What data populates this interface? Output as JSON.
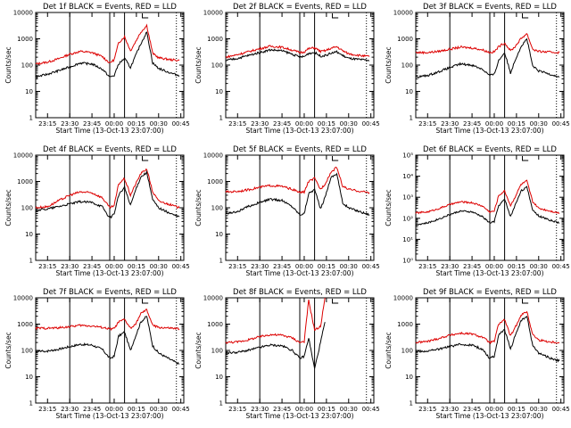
{
  "chart_data": [
    {
      "type": "line",
      "title": "Det 1f BLACK = Events, RED = LLD",
      "xlabel": "Start Time (13-Oct-13 23:07:00)",
      "ylabel": "Counts/sec",
      "yscale": "log",
      "ylim": [
        1,
        10000
      ],
      "ytick_labels": [
        "1",
        "10",
        "100",
        "1000",
        "10000"
      ],
      "xtick_labels": [
        "23:15",
        "23:30",
        "23:45",
        "00:00",
        "00:15",
        "00:30",
        "00:45"
      ],
      "x": [
        "23:07",
        "23:15",
        "23:22",
        "23:30",
        "23:37",
        "23:45",
        "23:52",
        "23:57",
        "00:00",
        "00:03",
        "00:07",
        "00:11",
        "00:14",
        "00:18",
        "00:22",
        "00:26",
        "00:30",
        "00:38",
        "00:44"
      ],
      "series": [
        {
          "name": "Events",
          "color": "#000000",
          "values": [
            35,
            45,
            60,
            85,
            120,
            110,
            70,
            35,
            40,
            110,
            180,
            80,
            200,
            650,
            1800,
            120,
            75,
            50,
            40
          ]
        },
        {
          "name": "LLD",
          "color": "#dd0000",
          "values": [
            110,
            130,
            170,
            260,
            330,
            300,
            210,
            120,
            160,
            700,
            1200,
            350,
            700,
            1800,
            3200,
            280,
            190,
            160,
            150
          ]
        }
      ],
      "vlines_solid": [
        "23:30",
        "23:57",
        "00:07"
      ],
      "vlines_dotted": [
        "23:07",
        "00:42"
      ]
    },
    {
      "type": "line",
      "title": "Det 2f BLACK = Events, RED = LLD",
      "xlabel": "Start Time (13-Oct-13 23:07:00)",
      "ylabel": "Counts/sec",
      "yscale": "log",
      "ylim": [
        1,
        10000
      ],
      "ytick_labels": [
        "1",
        "10",
        "100",
        "1000",
        "10000"
      ],
      "xtick_labels": [
        "23:15",
        "23:30",
        "23:45",
        "00:00",
        "00:15",
        "00:30",
        "00:45"
      ],
      "x": [
        "23:07",
        "23:15",
        "23:22",
        "23:30",
        "23:37",
        "23:45",
        "23:52",
        "23:57",
        "00:00",
        "00:03",
        "00:07",
        "00:11",
        "00:14",
        "00:18",
        "00:22",
        "00:26",
        "00:30",
        "00:38",
        "00:44"
      ],
      "series": [
        {
          "name": "Events",
          "color": "#000000",
          "values": [
            150,
            180,
            230,
            300,
            380,
            350,
            260,
            200,
            210,
            280,
            300,
            220,
            230,
            280,
            320,
            230,
            180,
            160,
            150
          ]
        },
        {
          "name": "LLD",
          "color": "#dd0000",
          "values": [
            200,
            250,
            320,
            420,
            520,
            480,
            370,
            300,
            320,
            420,
            460,
            330,
            350,
            430,
            500,
            350,
            270,
            230,
            210
          ]
        }
      ],
      "vlines_solid": [
        "23:30",
        "23:57",
        "00:07"
      ],
      "vlines_dotted": [
        "23:07",
        "00:42"
      ]
    },
    {
      "type": "line",
      "title": "Det 3f BLACK = Events, RED = LLD",
      "xlabel": "Start Time (13-Oct-13 23:07:00)",
      "ylabel": "Counts/sec",
      "yscale": "log",
      "ylim": [
        1,
        10000
      ],
      "ytick_labels": [
        "1",
        "10",
        "100",
        "1000",
        "10000"
      ],
      "xtick_labels": [
        "23:15",
        "23:30",
        "23:45",
        "00:00",
        "00:15",
        "00:30",
        "00:45"
      ],
      "x": [
        "23:07",
        "23:15",
        "23:22",
        "23:30",
        "23:37",
        "23:45",
        "23:52",
        "23:57",
        "00:00",
        "00:03",
        "00:07",
        "00:11",
        "00:14",
        "00:18",
        "00:22",
        "00:26",
        "00:30",
        "00:38",
        "00:44"
      ],
      "series": [
        {
          "name": "Events",
          "color": "#000000",
          "values": [
            35,
            40,
            55,
            80,
            110,
            100,
            70,
            40,
            45,
            150,
            300,
            50,
            150,
            500,
            1000,
            90,
            60,
            45,
            35
          ]
        },
        {
          "name": "LLD",
          "color": "#dd0000",
          "values": [
            300,
            300,
            330,
            400,
            480,
            450,
            380,
            300,
            320,
            500,
            700,
            350,
            500,
            1000,
            1600,
            400,
            330,
            310,
            300
          ]
        }
      ],
      "vlines_solid": [
        "23:30",
        "23:57",
        "00:07"
      ],
      "vlines_dotted": [
        "23:07",
        "00:42"
      ]
    },
    {
      "type": "line",
      "title": "Det 4f BLACK = Events, RED = LLD",
      "xlabel": "Start Time (13-Oct-13 23:07:00)",
      "ylabel": "Counts/sec",
      "yscale": "log",
      "ylim": [
        1,
        10000
      ],
      "ytick_labels": [
        "1",
        "10",
        "100",
        "1000",
        "10000"
      ],
      "xtick_labels": [
        "23:15",
        "23:30",
        "23:45",
        "00:00",
        "00:15",
        "00:30",
        "00:45"
      ],
      "x": [
        "23:07",
        "23:15",
        "23:22",
        "23:30",
        "23:37",
        "23:45",
        "23:52",
        "23:57",
        "00:00",
        "00:03",
        "00:07",
        "00:11",
        "00:14",
        "00:18",
        "00:22",
        "00:26",
        "00:30",
        "00:38",
        "00:44"
      ],
      "series": [
        {
          "name": "Events",
          "color": "#000000",
          "values": [
            80,
            90,
            110,
            140,
            170,
            160,
            110,
            40,
            60,
            300,
            600,
            120,
            400,
            1500,
            2200,
            200,
            100,
            60,
            45
          ]
        },
        {
          "name": "LLD",
          "color": "#dd0000",
          "values": [
            100,
            110,
            180,
            300,
            400,
            370,
            240,
            100,
            120,
            800,
            1300,
            300,
            700,
            2000,
            3000,
            400,
            180,
            130,
            100
          ]
        }
      ],
      "vlines_solid": [
        "23:30",
        "23:57",
        "00:07"
      ],
      "vlines_dotted": [
        "23:07",
        "00:42"
      ]
    },
    {
      "type": "line",
      "title": "Det 5f BLACK = Events, RED = LLD",
      "xlabel": "Start Time (13-Oct-13 23:07:00)",
      "ylabel": "Counts/sec",
      "yscale": "log",
      "ylim": [
        1,
        10000
      ],
      "ytick_labels": [
        "1",
        "10",
        "100",
        "1000",
        "10000"
      ],
      "xtick_labels": [
        "23:15",
        "23:30",
        "23:45",
        "00:00",
        "00:15",
        "00:30",
        "00:45"
      ],
      "x": [
        "23:07",
        "23:15",
        "23:22",
        "23:30",
        "23:37",
        "23:45",
        "23:52",
        "23:57",
        "00:00",
        "00:03",
        "00:07",
        "00:11",
        "00:14",
        "00:18",
        "00:22",
        "00:26",
        "00:30",
        "00:38",
        "00:44"
      ],
      "series": [
        {
          "name": "Events",
          "color": "#000000",
          "values": [
            60,
            70,
            110,
            160,
            210,
            190,
            110,
            55,
            60,
            350,
            500,
            90,
            250,
            1400,
            2000,
            150,
            100,
            70,
            55
          ]
        },
        {
          "name": "LLD",
          "color": "#dd0000",
          "values": [
            400,
            420,
            480,
            600,
            700,
            650,
            500,
            380,
            400,
            1000,
            1300,
            500,
            800,
            2200,
            3500,
            650,
            500,
            420,
            380
          ]
        }
      ],
      "vlines_solid": [
        "23:30",
        "23:57",
        "00:07"
      ],
      "vlines_dotted": [
        "23:07",
        "00:42"
      ]
    },
    {
      "type": "line",
      "title": "Det 6f BLACK = Events, RED = LLD",
      "xlabel": "Start Time (13-Oct-13 23:07:00)",
      "ylabel": "Counts/sec",
      "yscale": "log",
      "ylim": [
        1,
        100000
      ],
      "ytick_labels": [
        "10⁰",
        "10¹",
        "10²",
        "10³",
        "10⁴",
        "10⁵"
      ],
      "xtick_labels": [
        "23:15",
        "23:30",
        "23:45",
        "00:00",
        "00:15",
        "00:30",
        "00:45"
      ],
      "x": [
        "23:07",
        "23:15",
        "23:22",
        "23:30",
        "23:37",
        "23:45",
        "23:52",
        "23:57",
        "00:00",
        "00:03",
        "00:07",
        "00:11",
        "00:14",
        "00:18",
        "00:22",
        "00:26",
        "00:30",
        "00:38",
        "00:44"
      ],
      "series": [
        {
          "name": "Events",
          "color": "#000000",
          "values": [
            50,
            60,
            90,
            150,
            220,
            200,
            120,
            60,
            70,
            400,
            800,
            120,
            400,
            2000,
            3000,
            250,
            130,
            80,
            60
          ]
        },
        {
          "name": "LLD",
          "color": "#dd0000",
          "values": [
            180,
            200,
            280,
            450,
            600,
            550,
            380,
            200,
            220,
            1200,
            2000,
            400,
            1000,
            4000,
            6000,
            600,
            300,
            220,
            180
          ]
        }
      ],
      "vlines_solid": [
        "23:30",
        "23:57",
        "00:07"
      ],
      "vlines_dotted": [
        "23:07",
        "00:42"
      ]
    },
    {
      "type": "line",
      "title": "Det 7f BLACK = Events, RED = LLD",
      "xlabel": "Start Time (13-Oct-13 23:07:00)",
      "ylabel": "Counts/sec",
      "yscale": "log",
      "ylim": [
        1,
        10000
      ],
      "ytick_labels": [
        "1",
        "10",
        "100",
        "1000",
        "10000"
      ],
      "xtick_labels": [
        "23:15",
        "23:30",
        "23:45",
        "00:00",
        "00:15",
        "00:30",
        "00:45"
      ],
      "x": [
        "23:07",
        "23:15",
        "23:22",
        "23:30",
        "23:37",
        "23:45",
        "23:52",
        "23:57",
        "00:00",
        "00:03",
        "00:07",
        "00:11",
        "00:14",
        "00:18",
        "00:22",
        "00:26",
        "00:30",
        "00:38",
        "00:44"
      ],
      "series": [
        {
          "name": "Events",
          "color": "#000000",
          "values": [
            90,
            95,
            110,
            140,
            170,
            160,
            110,
            50,
            60,
            350,
            500,
            100,
            300,
            1200,
            2000,
            150,
            80,
            45,
            30
          ]
        },
        {
          "name": "LLD",
          "color": "#dd0000",
          "values": [
            700,
            700,
            720,
            800,
            900,
            850,
            750,
            650,
            680,
            1200,
            1500,
            700,
            900,
            2500,
            3500,
            900,
            750,
            700,
            650
          ]
        }
      ],
      "vlines_solid": [
        "23:30",
        "23:57",
        "00:07"
      ],
      "vlines_dotted": [
        "23:07",
        "00:42"
      ]
    },
    {
      "type": "line",
      "title": "Det 8f BLACK = Events, RED = LLD",
      "xlabel": "Start Time (13-Oct-13 23:07:00)",
      "ylabel": "Counts/sec",
      "yscale": "log",
      "ylim": [
        1,
        10000
      ],
      "ytick_labels": [
        "1",
        "10",
        "100",
        "1000",
        "10000"
      ],
      "xtick_labels": [
        "23:15",
        "23:30",
        "23:45",
        "00:00",
        "00:15",
        "00:30",
        "00:45"
      ],
      "x": [
        "23:07",
        "23:15",
        "23:22",
        "23:30",
        "23:37",
        "23:45",
        "23:52",
        "23:57",
        "00:00",
        "00:03",
        "00:07",
        "00:11",
        "00:14"
      ],
      "series": [
        {
          "name": "Events",
          "color": "#000000",
          "values": [
            80,
            85,
            100,
            130,
            160,
            150,
            100,
            50,
            60,
            300,
            20,
            200,
            1200
          ]
        },
        {
          "name": "LLD",
          "color": "#dd0000",
          "values": [
            200,
            210,
            250,
            330,
            400,
            380,
            300,
            200,
            220,
            8000,
            600,
            800,
            10000
          ]
        }
      ],
      "vlines_solid": [
        "23:30",
        "23:57",
        "00:07"
      ],
      "vlines_dotted": [
        "23:07",
        "00:42"
      ]
    },
    {
      "type": "line",
      "title": "Det 9f BLACK = Events, RED = LLD",
      "xlabel": "Start Time (13-Oct-13 23:07:00)",
      "ylabel": "Counts/sec",
      "yscale": "log",
      "ylim": [
        1,
        10000
      ],
      "ytick_labels": [
        "1",
        "10",
        "100",
        "1000",
        "10000"
      ],
      "xtick_labels": [
        "23:15",
        "23:30",
        "23:45",
        "00:00",
        "00:15",
        "00:30",
        "00:45"
      ],
      "x": [
        "23:07",
        "23:15",
        "23:22",
        "23:30",
        "23:37",
        "23:45",
        "23:52",
        "23:57",
        "00:00",
        "00:03",
        "00:07",
        "00:11",
        "00:14",
        "00:18",
        "00:22",
        "00:26",
        "00:30",
        "00:38",
        "00:44"
      ],
      "series": [
        {
          "name": "Events",
          "color": "#000000",
          "values": [
            90,
            95,
            110,
            140,
            170,
            160,
            110,
            50,
            60,
            400,
            600,
            110,
            350,
            1300,
            2000,
            150,
            80,
            50,
            40
          ]
        },
        {
          "name": "LLD",
          "color": "#dd0000",
          "values": [
            200,
            220,
            280,
            380,
            450,
            420,
            320,
            200,
            220,
            1000,
            1500,
            350,
            700,
            2200,
            3000,
            400,
            250,
            210,
            200
          ]
        }
      ],
      "vlines_solid": [
        "23:30",
        "23:57",
        "00:07"
      ],
      "vlines_dotted": [
        "23:07",
        "00:42"
      ]
    }
  ]
}
